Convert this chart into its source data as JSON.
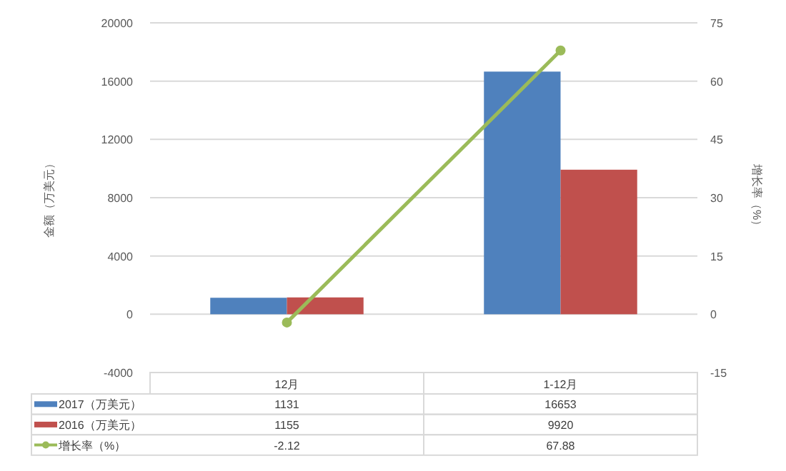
{
  "chart_data": {
    "type": "bar",
    "categories": [
      "12月",
      "1-12月"
    ],
    "series": [
      {
        "name": "2017（万美元）",
        "color": "#4f81bd",
        "values": [
          1131,
          16653
        ]
      },
      {
        "name": "2016（万美元）",
        "color": "#c0504d",
        "values": [
          1155,
          9920
        ]
      },
      {
        "name": "增长率（%）",
        "type": "line",
        "axis": "y2",
        "color": "#9bbb59",
        "marker": "circle",
        "values": [
          -2.12,
          67.88
        ]
      }
    ],
    "ylabel": "金额（万美元）",
    "y2label": "增长率（%）",
    "ylim": [
      -4000,
      20000
    ],
    "yticks": [
      -4000,
      0,
      4000,
      8000,
      12000,
      16000,
      20000
    ],
    "y2lim": [
      -15,
      75
    ],
    "y2ticks": [
      -15,
      0,
      15,
      30,
      45,
      60,
      75
    ],
    "grid": "y",
    "legend": "bottom",
    "data_labels": true
  }
}
